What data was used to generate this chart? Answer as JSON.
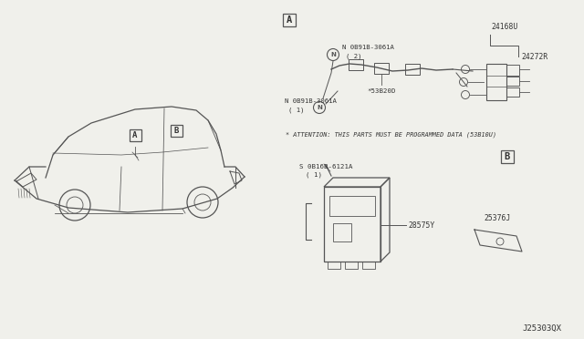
{
  "bg_color": "#f0f0eb",
  "line_color": "#555555",
  "text_color": "#333333",
  "diagram_id": "J25303QX",
  "attention_text": "* ATTENTION: THIS PARTS MUST BE PROGRAMMED DATA (53B10U)",
  "labels": {
    "box_A": "A",
    "box_B": "B",
    "bolt_top": "N 0B91B-3061A",
    "bolt_top_qty": "( 2)",
    "bolt_bot": "N 0B91B-3061A",
    "bolt_bot_qty": "( 1)",
    "harness": "*53B20D",
    "right_top": "24168U",
    "right_bot": "24272R",
    "screw": "S 0B16B-6121A",
    "screw_qty": "( 1)",
    "ecu": "28575Y",
    "plate": "25376J"
  }
}
